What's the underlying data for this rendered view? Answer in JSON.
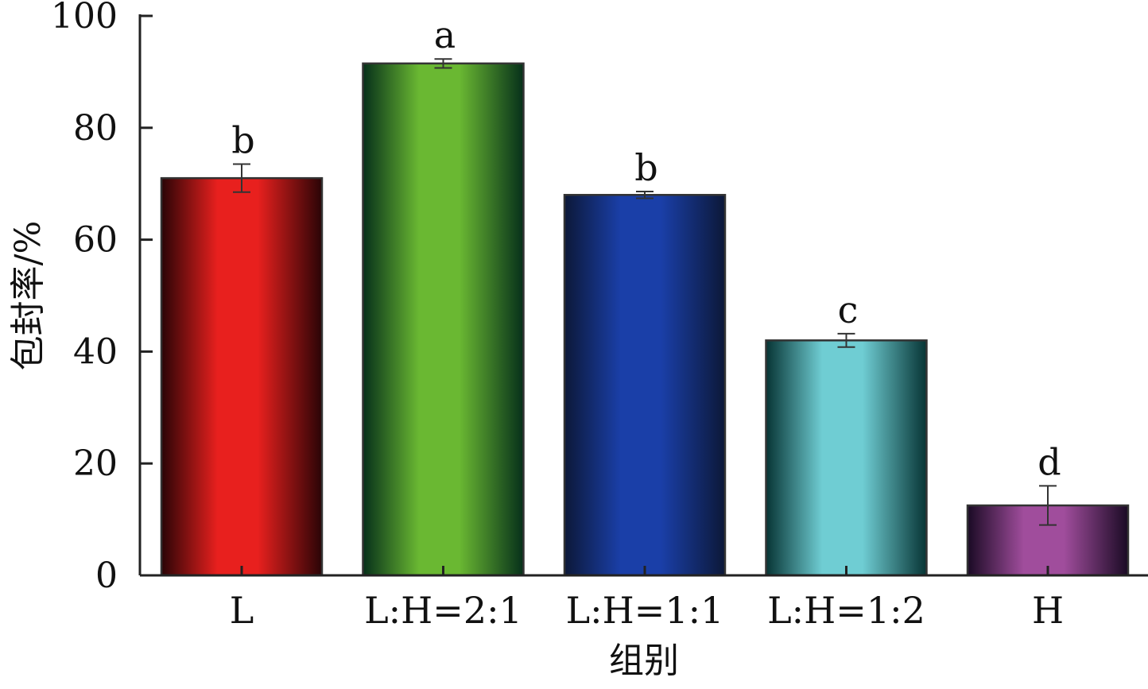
{
  "chart_data": {
    "type": "bar",
    "categories": [
      "L",
      "L:H=2:1",
      "L:H=1:1",
      "L:H=1:2",
      "H"
    ],
    "values": [
      71,
      91.5,
      68,
      42,
      12.5
    ],
    "errors": [
      2.5,
      0.8,
      0.6,
      1.2,
      3.5
    ],
    "significance": [
      "b",
      "a",
      "b",
      "c",
      "d"
    ],
    "xlabel": "组别",
    "ylabel": "包封率/%",
    "ylim": [
      0,
      100
    ],
    "yticks": [
      0,
      20,
      40,
      60,
      80,
      100
    ],
    "ytick_labels": [
      "0",
      "20",
      "40",
      "60",
      "80",
      "100"
    ],
    "grid": false,
    "bar_colors": [
      {
        "edge": "#2a0406",
        "center": "#e8201e"
      },
      {
        "edge": "#06301a",
        "center": "#6ab832"
      },
      {
        "edge": "#0c1838",
        "center": "#1a3fa8"
      },
      {
        "edge": "#073434",
        "center": "#6fcdd3"
      },
      {
        "edge": "#1a0a24",
        "center": "#a04d9c"
      }
    ]
  }
}
